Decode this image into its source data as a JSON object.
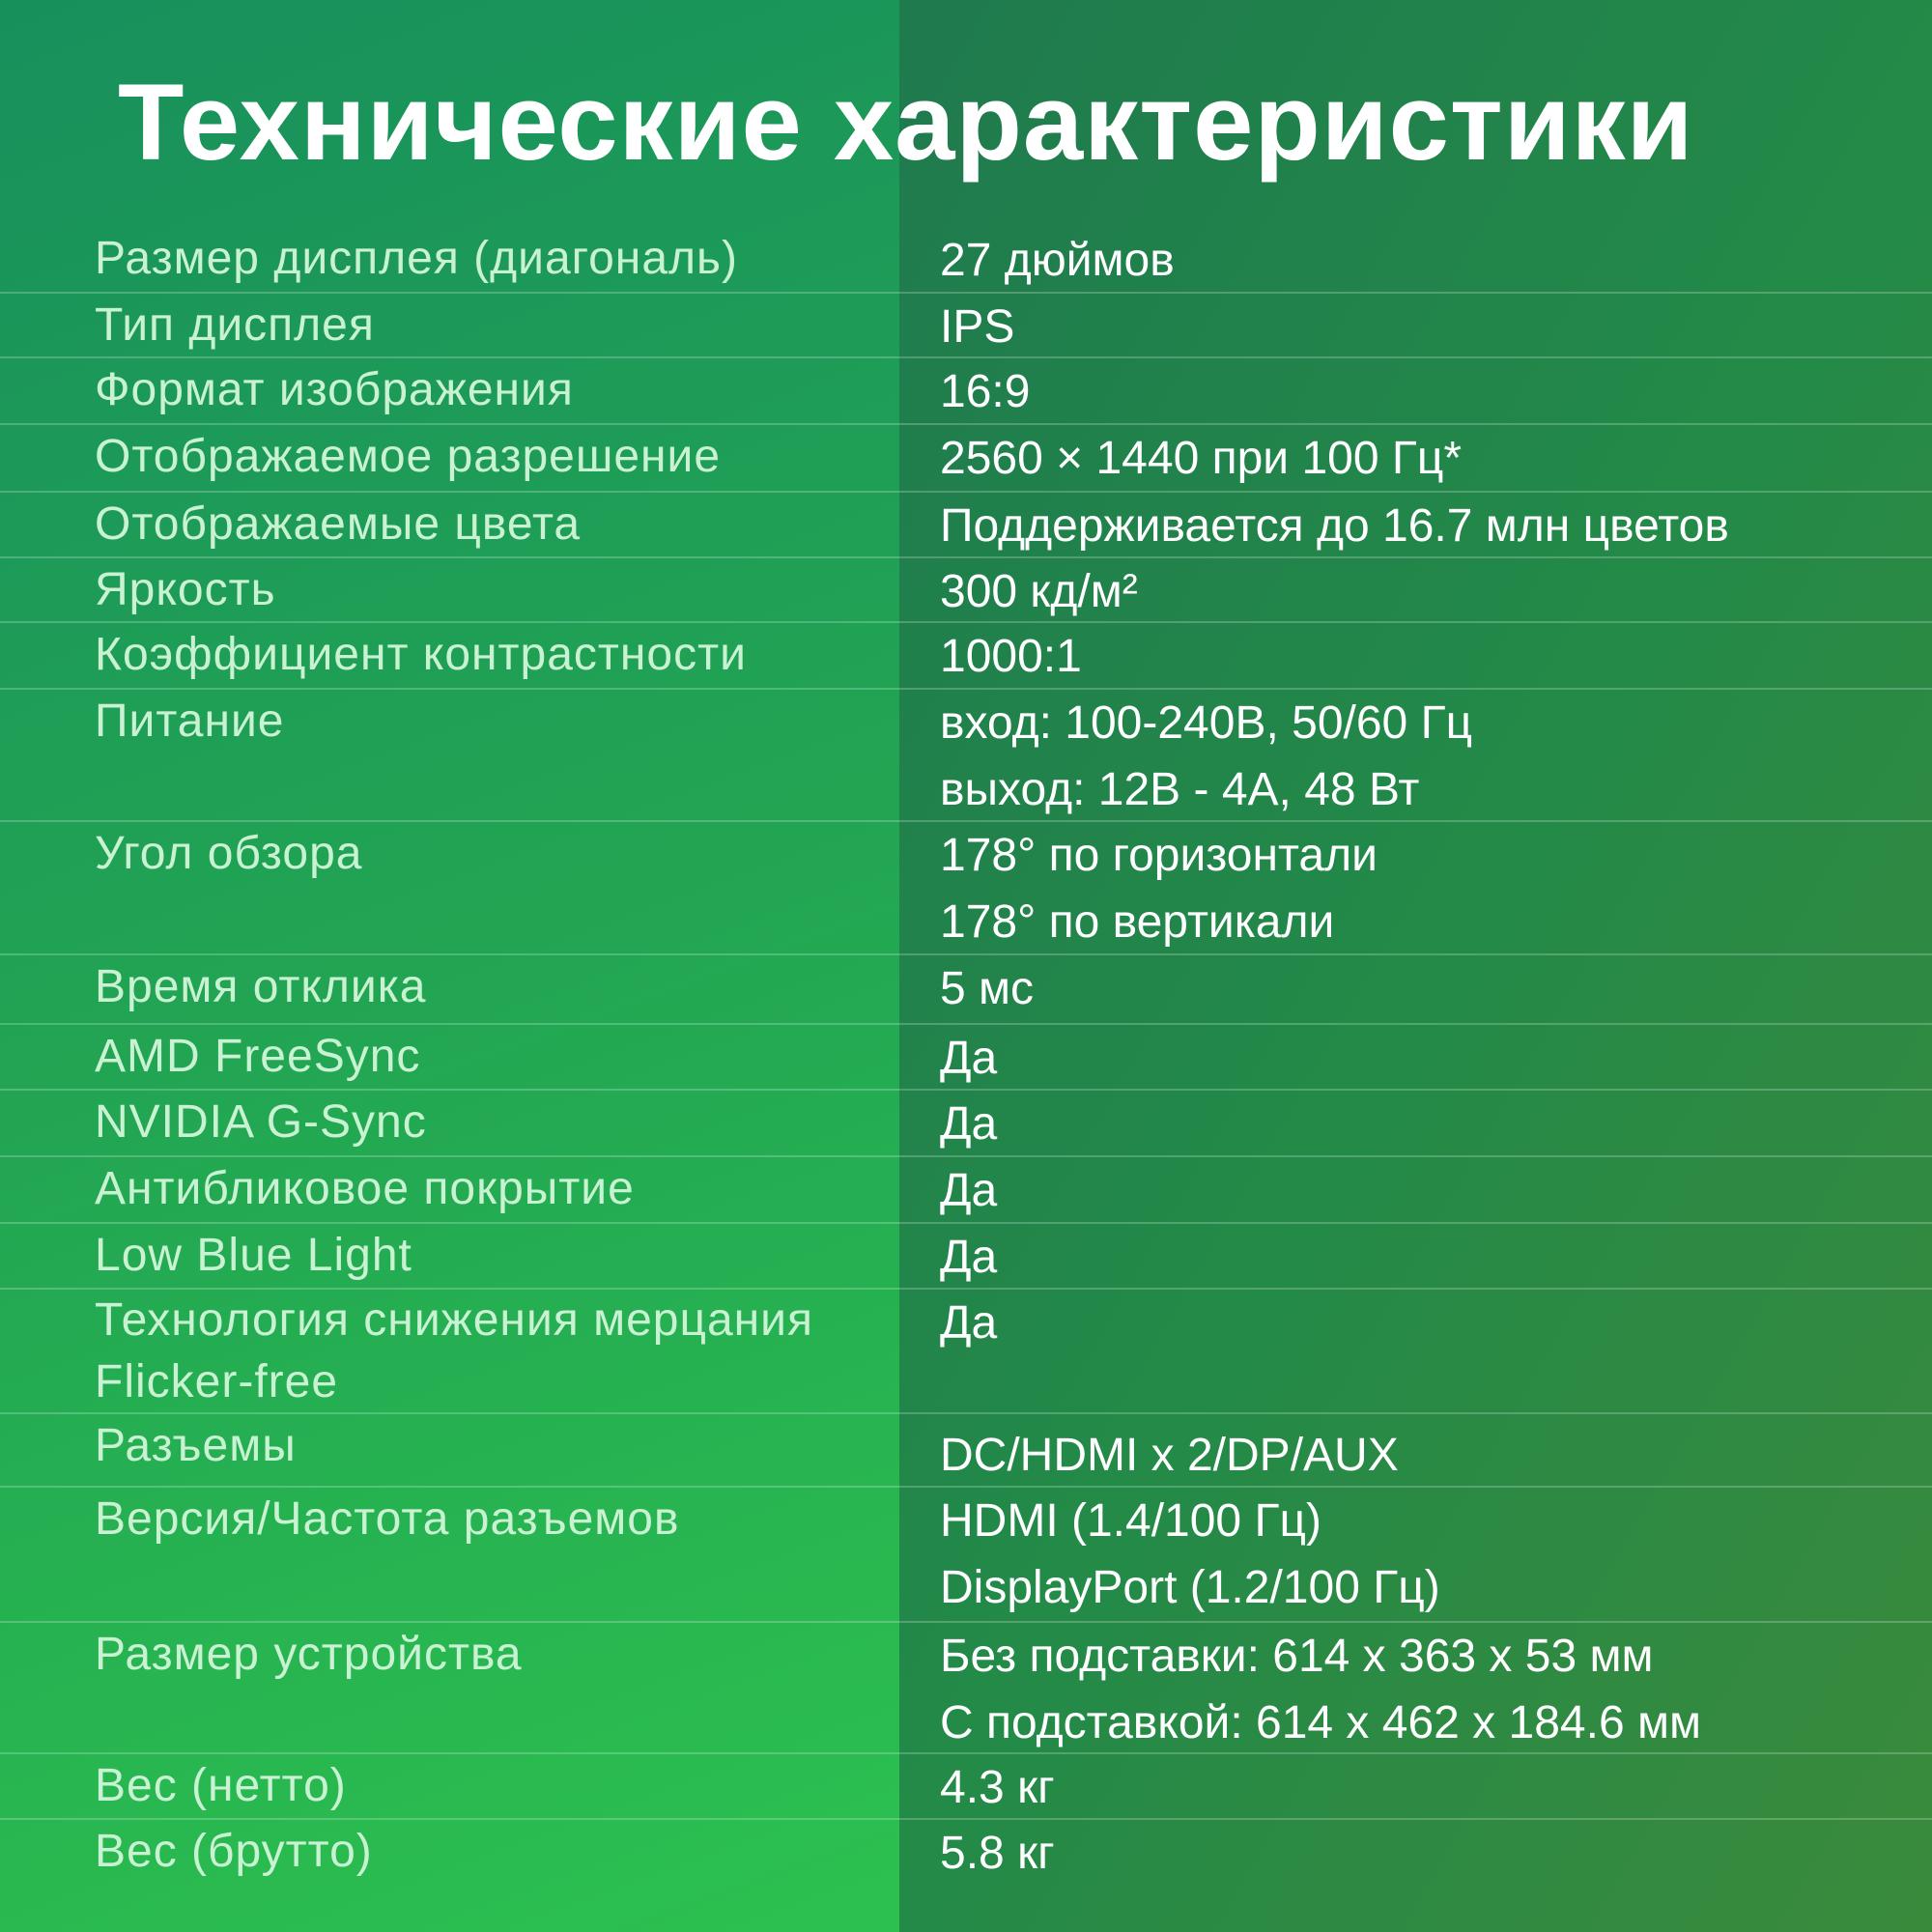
{
  "title": "Технические характеристики",
  "specs": [
    {
      "label": "Размер дисплея (диагональ)",
      "values": [
        "27 дюймов"
      ]
    },
    {
      "label": "Тип дисплея",
      "values": [
        "IPS"
      ]
    },
    {
      "label": "Формат изображения",
      "values": [
        "16:9"
      ]
    },
    {
      "label": "Отображаемое разрешение",
      "values": [
        "2560 × 1440 при 100 Гц*"
      ]
    },
    {
      "label": "Отображаемые цвета",
      "values": [
        "Поддерживается до 16.7 млн цветов"
      ]
    },
    {
      "label": "Яркость",
      "values": [
        "300 кд/м²"
      ]
    },
    {
      "label": "Коэффициент контрастности",
      "values": [
        "1000:1"
      ]
    },
    {
      "label": "Питание",
      "values": [
        "вход: 100-240В, 50/60 Гц",
        "выход: 12В - 4А, 48 Вт"
      ]
    },
    {
      "label": "Угол обзора",
      "values": [
        "178° по горизонтали",
        "178° по вертикали"
      ]
    },
    {
      "label": "Время отклика",
      "values": [
        "5 мс"
      ]
    },
    {
      "label": "AMD FreeSync",
      "values": [
        "Да"
      ]
    },
    {
      "label": "NVIDIA G-Sync",
      "values": [
        "Да"
      ]
    },
    {
      "label": "Антибликовое покрытие",
      "values": [
        "Да"
      ]
    },
    {
      "label": "Low Blue Light",
      "values": [
        "Да"
      ]
    },
    {
      "label": "Технология снижения мерцания Flicker-free",
      "values": [
        "Да"
      ]
    },
    {
      "label": "Разъемы",
      "values": [
        "DC/HDMI x 2/DP/AUX"
      ]
    },
    {
      "label": "Версия/Частота разъемов",
      "values": [
        "HDMI (1.4/100 Гц)",
        "DisplayPort (1.2/100 Гц)"
      ]
    },
    {
      "label": "Размер устройства",
      "values": [
        "Без подставки: 614 x 363 x 53 мм",
        "С подставкой: 614 x 462 x 184.6 мм"
      ]
    },
    {
      "label": "Вес (нетто)",
      "values": [
        "4.3 кг"
      ]
    },
    {
      "label": "Вес (брутто)",
      "values": [
        "5.8 кг"
      ]
    }
  ],
  "colors": {
    "left_panel": "#22a553",
    "right_panel": "#238a48",
    "label_text": "#c9f2d2",
    "value_text": "#ffffff"
  }
}
